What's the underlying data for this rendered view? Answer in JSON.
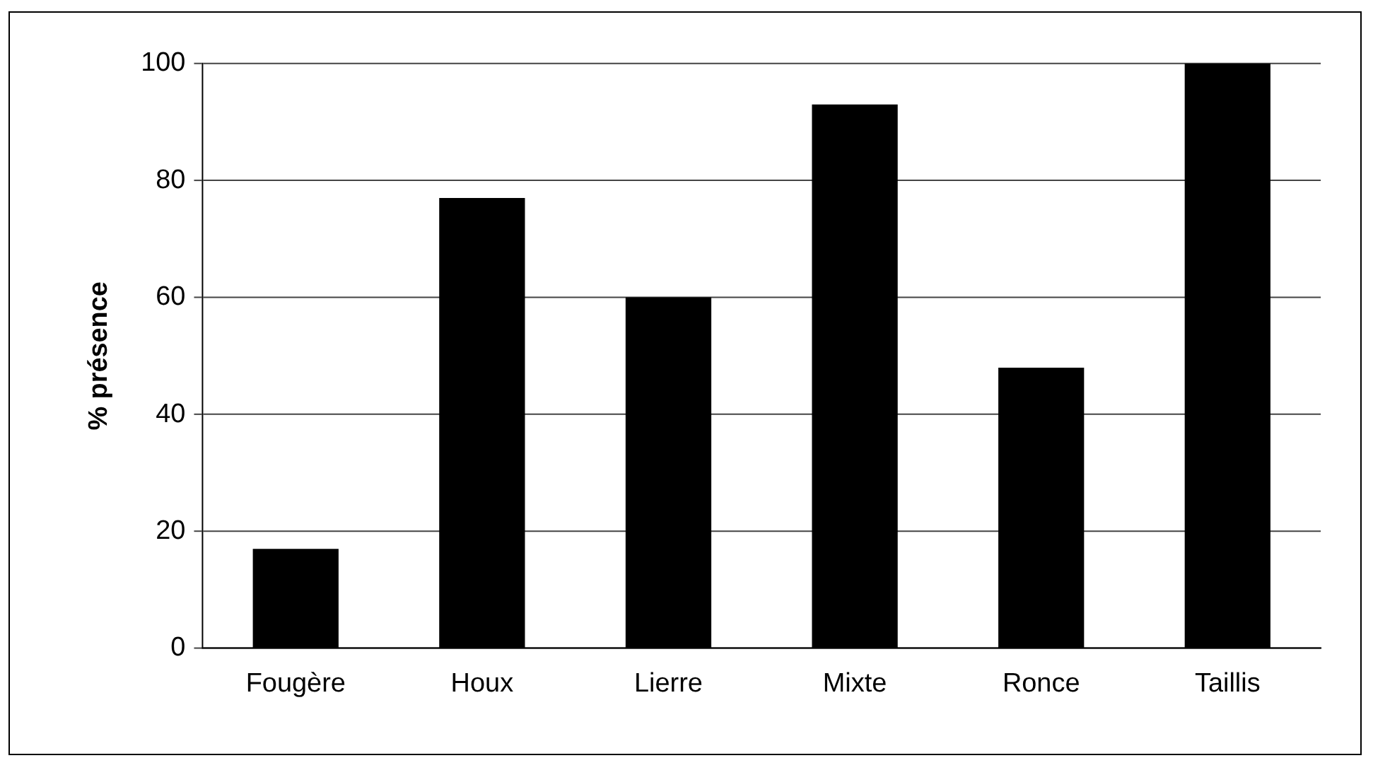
{
  "chart_data": {
    "type": "bar",
    "ylabel": "% présence",
    "categories": [
      "Fougère",
      "Houx",
      "Lierre",
      "Mixte",
      "Ronce",
      "Taillis"
    ],
    "values": [
      17,
      77,
      60,
      93,
      48,
      100
    ],
    "color": "#000000",
    "ylim": [
      0,
      100
    ],
    "yticks": [
      0,
      20,
      40,
      60,
      80,
      100
    ],
    "grid": "y",
    "legend": false
  }
}
